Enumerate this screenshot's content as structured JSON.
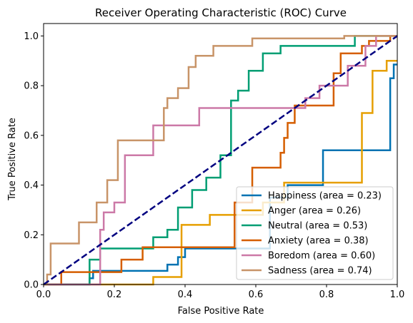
{
  "chart_data": {
    "type": "line",
    "title": "Receiver Operating Characteristic (ROC) Curve",
    "xlabel": "False Positive Rate",
    "ylabel": "True Positive Rate",
    "xlim": [
      0,
      1.0
    ],
    "ylim": [
      0,
      1.05
    ],
    "xticks": [
      0,
      0.2,
      0.4,
      0.6,
      0.8,
      1.0
    ],
    "xtick_labels": [
      "0.0",
      "0.2",
      "0.4",
      "0.6",
      "0.8",
      "1.0"
    ],
    "yticks": [
      0,
      0.2,
      0.4,
      0.6,
      0.8,
      1.0
    ],
    "ytick_labels": [
      "0.0",
      "0.2",
      "0.4",
      "0.6",
      "0.8",
      "1.0"
    ],
    "grid": false,
    "legend_placement": "lower-right",
    "diagonal": {
      "x": [
        0,
        1
      ],
      "y": [
        0,
        1
      ],
      "color": "#000080",
      "style": "dashed"
    },
    "series": [
      {
        "name": "Happiness (area = 0.23)",
        "color": "#0072B2",
        "x": [
          0,
          0.13,
          0.13,
          0.14,
          0.14,
          0.35,
          0.35,
          0.38,
          0.38,
          0.4,
          0.4,
          0.64,
          0.64,
          0.69,
          0.69,
          0.79,
          0.79,
          0.98,
          0.98,
          0.99,
          0.99,
          1.0
        ],
        "y": [
          0,
          0,
          0.025,
          0.025,
          0.055,
          0.055,
          0.08,
          0.08,
          0.11,
          0.11,
          0.145,
          0.145,
          0.35,
          0.35,
          0.4,
          0.4,
          0.54,
          0.54,
          0.83,
          0.83,
          0.885,
          0.885
        ]
      },
      {
        "name": "Anger (area = 0.26)",
        "color": "#E69F00",
        "x": [
          0,
          0.31,
          0.31,
          0.39,
          0.39,
          0.47,
          0.47,
          0.62,
          0.62,
          0.68,
          0.68,
          0.9,
          0.9,
          0.93,
          0.93,
          0.97,
          0.97,
          1.0
        ],
        "y": [
          0,
          0,
          0.03,
          0.03,
          0.24,
          0.24,
          0.28,
          0.28,
          0.33,
          0.33,
          0.41,
          0.41,
          0.69,
          0.69,
          0.86,
          0.86,
          0.9,
          0.9
        ]
      },
      {
        "name": "Neutral (area = 0.53)",
        "color": "#009E73",
        "x": [
          0,
          0.13,
          0.13,
          0.16,
          0.16,
          0.31,
          0.31,
          0.35,
          0.35,
          0.38,
          0.38,
          0.42,
          0.42,
          0.46,
          0.46,
          0.5,
          0.5,
          0.53,
          0.53,
          0.55,
          0.55,
          0.58,
          0.58,
          0.62,
          0.62,
          0.67,
          0.67,
          0.86,
          0.86,
          0.88,
          0.88,
          0.98,
          0.98,
          1.0
        ],
        "y": [
          0,
          0,
          0.1,
          0.1,
          0.145,
          0.145,
          0.19,
          0.19,
          0.22,
          0.22,
          0.31,
          0.31,
          0.38,
          0.38,
          0.43,
          0.43,
          0.52,
          0.52,
          0.74,
          0.74,
          0.78,
          0.78,
          0.86,
          0.86,
          0.93,
          0.93,
          0.96,
          0.96,
          0.96,
          0.96,
          1.0,
          1.0,
          1.0,
          1.0
        ]
      },
      {
        "name": "Anxiety (area = 0.38)",
        "color": "#D55E00",
        "x": [
          0,
          0.05,
          0.05,
          0.22,
          0.22,
          0.28,
          0.28,
          0.54,
          0.54,
          0.59,
          0.59,
          0.67,
          0.67,
          0.68,
          0.68,
          0.69,
          0.69,
          0.71,
          0.71,
          0.82,
          0.82,
          0.84,
          0.84,
          0.9,
          0.9,
          0.92,
          0.92,
          0.98,
          0.98,
          1.0
        ],
        "y": [
          0,
          0,
          0.05,
          0.05,
          0.1,
          0.1,
          0.15,
          0.15,
          0.33,
          0.33,
          0.47,
          0.47,
          0.53,
          0.53,
          0.59,
          0.59,
          0.65,
          0.65,
          0.72,
          0.72,
          0.85,
          0.85,
          0.93,
          0.93,
          0.96,
          0.96,
          0.98,
          0.98,
          1.0,
          1.0
        ]
      },
      {
        "name": "Boredom (area = 0.60)",
        "color": "#CC79A7",
        "x": [
          0,
          0.16,
          0.16,
          0.17,
          0.17,
          0.2,
          0.2,
          0.23,
          0.23,
          0.31,
          0.31,
          0.44,
          0.44,
          0.74,
          0.74,
          0.78,
          0.78,
          0.86,
          0.86,
          0.91,
          0.91,
          0.94,
          0.94,
          1.0
        ],
        "y": [
          0,
          0,
          0.22,
          0.22,
          0.29,
          0.29,
          0.33,
          0.33,
          0.52,
          0.52,
          0.64,
          0.64,
          0.71,
          0.71,
          0.75,
          0.75,
          0.8,
          0.8,
          0.88,
          0.88,
          0.96,
          0.96,
          1.0,
          1.0
        ]
      },
      {
        "name": "Sadness (area = 0.74)",
        "color": "#C89468",
        "x": [
          0,
          0.01,
          0.01,
          0.02,
          0.02,
          0.1,
          0.1,
          0.15,
          0.15,
          0.18,
          0.18,
          0.21,
          0.21,
          0.34,
          0.34,
          0.35,
          0.35,
          0.38,
          0.38,
          0.41,
          0.41,
          0.43,
          0.43,
          0.48,
          0.48,
          0.59,
          0.59,
          0.85,
          0.85,
          0.9,
          0.9,
          1.0
        ],
        "y": [
          0,
          0,
          0.04,
          0.04,
          0.165,
          0.165,
          0.25,
          0.25,
          0.33,
          0.33,
          0.42,
          0.42,
          0.58,
          0.58,
          0.71,
          0.71,
          0.75,
          0.75,
          0.79,
          0.79,
          0.875,
          0.875,
          0.92,
          0.92,
          0.96,
          0.96,
          0.99,
          0.99,
          1.0,
          1.0,
          1.0,
          1.0
        ]
      }
    ]
  }
}
